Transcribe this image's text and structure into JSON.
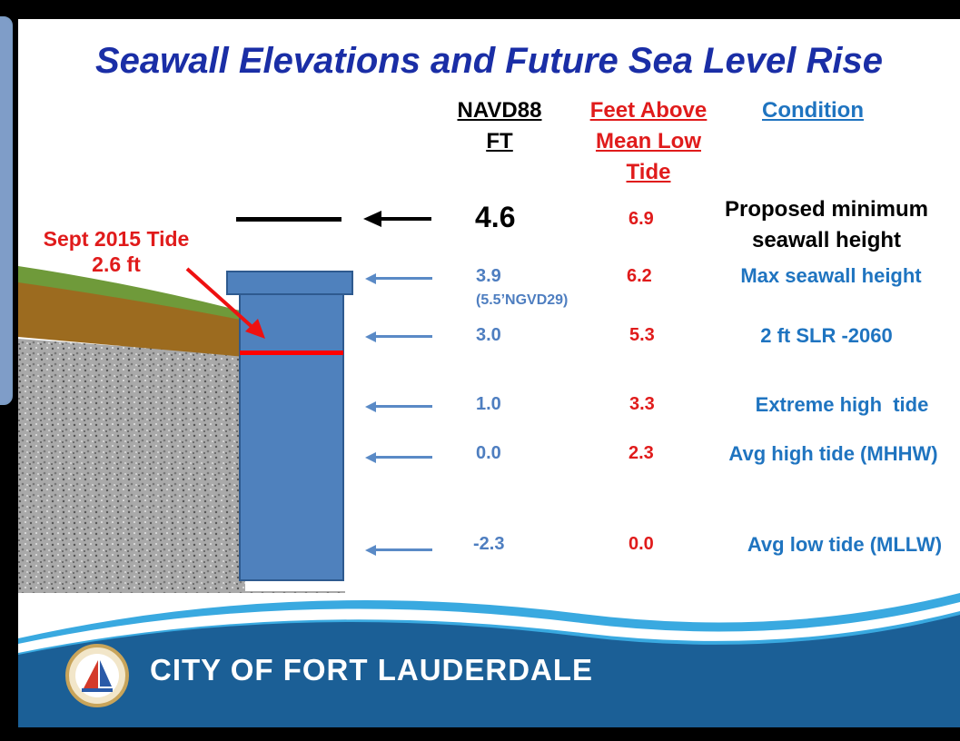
{
  "title": "Seawall Elevations and Future Sea Level Rise",
  "columns": {
    "navd88": [
      "NAVD88",
      "FT"
    ],
    "feet_above": [
      "Feet Above",
      "Mean Low",
      "Tide"
    ],
    "condition": "Condition"
  },
  "rows": [
    {
      "navd88": "4.6",
      "feet": "6.9",
      "condition": [
        "Proposed minimum",
        "seawall height"
      ]
    },
    {
      "navd88": "3.9",
      "navd88_note": "(5.5’NGVD29)",
      "feet": "6.2",
      "condition": [
        "Max seawall height"
      ]
    },
    {
      "navd88": "3.0",
      "feet": "5.3",
      "condition": [
        "2 ft SLR -2060"
      ]
    },
    {
      "navd88": "1.0",
      "feet": "3.3",
      "condition": [
        "Extreme high  tide"
      ]
    },
    {
      "navd88": "0.0",
      "feet": "2.3",
      "condition": [
        "Avg high tide (MHHW)"
      ]
    },
    {
      "navd88": "-2.3",
      "feet": "0.0",
      "condition": [
        "Avg low tide (MLLW)"
      ]
    }
  ],
  "tide_label": [
    "Sept 2015 Tide",
    "2.6  ft"
  ],
  "footer": {
    "org": "CITY OF FORT LAUDERDALE"
  },
  "colors": {
    "title": "#1a2ea6",
    "navd88_values": "#4e7ec0",
    "feet_values": "#e01b1b",
    "condition": "#1f74c0",
    "seawall": "#4f81bd",
    "tide_line": "#ff0000",
    "footer": "#1b5f96"
  }
}
